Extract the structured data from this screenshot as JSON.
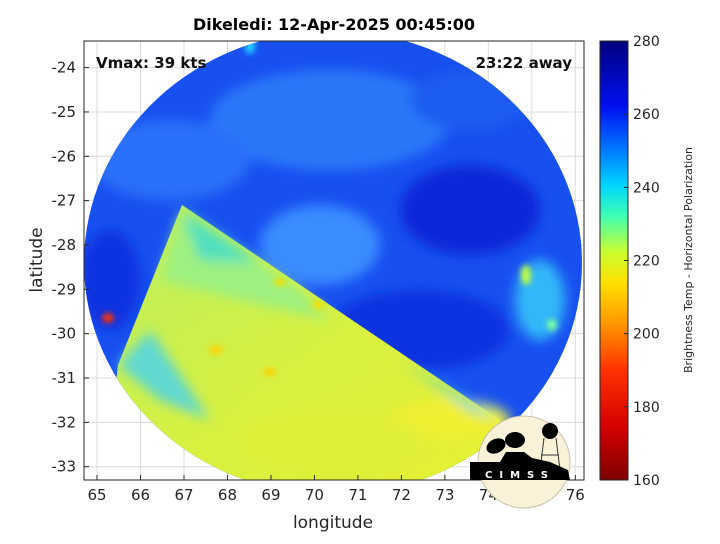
{
  "chart_data": {
    "type": "heatmap",
    "title": "Dikeledi: 12-Apr-2025 00:45:00",
    "xlabel": "longitude",
    "ylabel": "latitude",
    "xlim": [
      64.7,
      76.2
    ],
    "ylim": [
      -33.3,
      -23.4
    ],
    "x_ticks": [
      "65",
      "66",
      "67",
      "68",
      "69",
      "70",
      "71",
      "72",
      "73",
      "74",
      "75",
      "76"
    ],
    "y_ticks": [
      "-24",
      "-25",
      "-26",
      "-27",
      "-28",
      "-29",
      "-30",
      "-31",
      "-32",
      "-33"
    ],
    "grid": true,
    "annotations": {
      "left": "Vmax: 39 kts",
      "right": "23:22 away"
    },
    "colorbar": {
      "label": "Brightness Temp - Horizontal Polarization",
      "range": [
        160,
        280
      ],
      "ticks": [
        "160",
        "180",
        "200",
        "220",
        "240",
        "260",
        "280"
      ],
      "colormap": "jet"
    }
  },
  "logo": {
    "text": "CIMSS"
  }
}
